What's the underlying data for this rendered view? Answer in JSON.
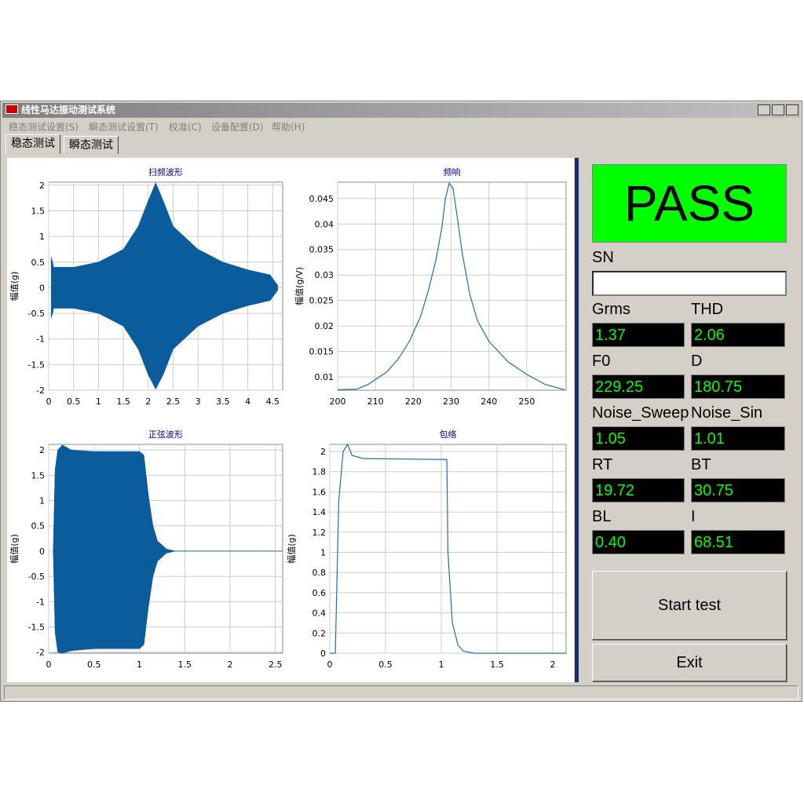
{
  "window": {
    "title": "线性马达振动测试系统"
  },
  "menu": [
    "稳态测试设置(S)",
    "瞬态测试设置(T)",
    "校准(C)",
    "设备配置(D)",
    "帮助(H)"
  ],
  "tabs": [
    "稳态测试",
    "瞬态测试"
  ],
  "chart_data": [
    {
      "type": "area",
      "title": "扫频波形",
      "y_label": "幅值(g)",
      "x": [
        0.05,
        0.08,
        0.1,
        0.5,
        1.0,
        1.5,
        1.8,
        2.0,
        2.15,
        2.3,
        2.5,
        3.0,
        3.5,
        4.0,
        4.45,
        4.6
      ],
      "series": [
        {
          "color": "#0b5c9c",
          "values": [
            0.6,
            0.5,
            0.4,
            0.4,
            0.5,
            0.75,
            1.2,
            1.7,
            2.05,
            1.7,
            1.2,
            0.75,
            0.5,
            0.35,
            0.25,
            0.05
          ]
        },
        {
          "color": "#0b5c9c",
          "values": [
            -0.6,
            -0.5,
            -0.4,
            -0.4,
            -0.5,
            -0.75,
            -1.2,
            -1.7,
            -1.98,
            -1.7,
            -1.2,
            -0.75,
            -0.5,
            -0.35,
            -0.25,
            -0.05
          ]
        }
      ],
      "xlim": [
        0,
        4.7
      ],
      "ylim": [
        -2,
        2.06
      ],
      "xticks": [
        0,
        0.5,
        1,
        1.5,
        2,
        2.5,
        3,
        3.5,
        4,
        4.5
      ],
      "yticks": [
        -2,
        -1.5,
        -1,
        -0.5,
        0,
        0.5,
        1,
        1.5,
        2
      ],
      "grid": true
    },
    {
      "type": "line",
      "title": "频响",
      "y_label": "幅值(g/V)",
      "x": [
        200,
        205,
        208,
        210,
        213,
        216,
        219,
        222,
        224,
        226,
        227.5,
        228.5,
        229.5,
        230.5,
        231.5,
        233,
        235,
        237,
        240,
        245,
        250,
        255,
        260
      ],
      "series": [
        {
          "color": "#1f6fb0",
          "values": [
            0.0075,
            0.0076,
            0.0085,
            0.0095,
            0.011,
            0.0135,
            0.017,
            0.022,
            0.027,
            0.033,
            0.039,
            0.045,
            0.048,
            0.047,
            0.042,
            0.034,
            0.026,
            0.021,
            0.017,
            0.013,
            0.0105,
            0.0085,
            0.0075
          ]
        }
      ],
      "xlim": [
        200,
        260.4
      ],
      "ylim": [
        0.0074,
        0.0482
      ],
      "xticks": [
        200,
        210,
        220,
        230,
        240,
        250
      ],
      "yticks": [
        0.01,
        0.015,
        0.02,
        0.025,
        0.03,
        0.035,
        0.04,
        0.045
      ],
      "grid": true
    },
    {
      "type": "area",
      "title": "正弦波形",
      "y_label": "幅值(g)",
      "x": [
        0.05,
        0.07,
        0.1,
        0.15,
        0.25,
        0.5,
        1.0,
        1.05,
        1.1,
        1.15,
        1.2,
        1.3,
        1.4,
        2.58
      ],
      "series": [
        {
          "color": "#0b5c9c",
          "values": [
            0,
            1.6,
            2.0,
            2.1,
            2.0,
            1.97,
            1.97,
            1.9,
            1.1,
            0.5,
            0.2,
            0.04,
            0,
            0
          ]
        },
        {
          "color": "#0b5c9c",
          "values": [
            0,
            -1.6,
            -2.0,
            -2.02,
            -1.97,
            -1.93,
            -1.93,
            -1.85,
            -1.1,
            -0.5,
            -0.2,
            -0.04,
            0,
            0
          ]
        }
      ],
      "xlim": [
        0,
        2.58
      ],
      "ylim": [
        -2.02,
        2.11
      ],
      "xticks": [
        0,
        0.5,
        1,
        1.5,
        2,
        2.5
      ],
      "yticks": [
        -2,
        -1.5,
        -1,
        -0.5,
        0,
        0.5,
        1,
        1.5,
        2
      ],
      "grid": true
    },
    {
      "type": "line",
      "title": "包络",
      "y_label": "幅值(g)",
      "x": [
        0,
        0.05,
        0.08,
        0.12,
        0.16,
        0.2,
        0.3,
        1.05,
        1.06,
        1.1,
        1.15,
        1.2,
        1.3,
        2.12
      ],
      "series": [
        {
          "color": "#1f6fb0",
          "values": [
            0,
            0,
            1.5,
            2.0,
            2.07,
            1.96,
            1.93,
            1.92,
            1.0,
            0.3,
            0.08,
            0.02,
            0,
            0
          ]
        }
      ],
      "xlim": [
        0,
        2.12
      ],
      "ylim": [
        0,
        2.07
      ],
      "xticks": [
        0,
        0.5,
        1,
        1.5,
        2
      ],
      "yticks": [
        0,
        0.2,
        0.4,
        0.6,
        0.8,
        1,
        1.2,
        1.4,
        1.6,
        1.8,
        2
      ],
      "grid": true
    }
  ],
  "result": "PASS",
  "sn": {
    "label": "SN"
  },
  "fields": [
    {
      "label": "Grms",
      "value": "1.37"
    },
    {
      "label": "THD",
      "value": "2.06"
    },
    {
      "label": "F0",
      "value": "229.25"
    },
    {
      "label": "D",
      "value": "180.75"
    },
    {
      "label": "Noise_Sweep",
      "value": "1.05"
    },
    {
      "label": "Noise_Sin",
      "value": "1.01"
    },
    {
      "label": "RT",
      "value": "19.72"
    },
    {
      "label": "BT",
      "value": "30.75"
    },
    {
      "label": "BL",
      "value": "0.40"
    },
    {
      "label": "I",
      "value": "68.51"
    }
  ],
  "buttons": [
    "Start test",
    "Exit"
  ]
}
